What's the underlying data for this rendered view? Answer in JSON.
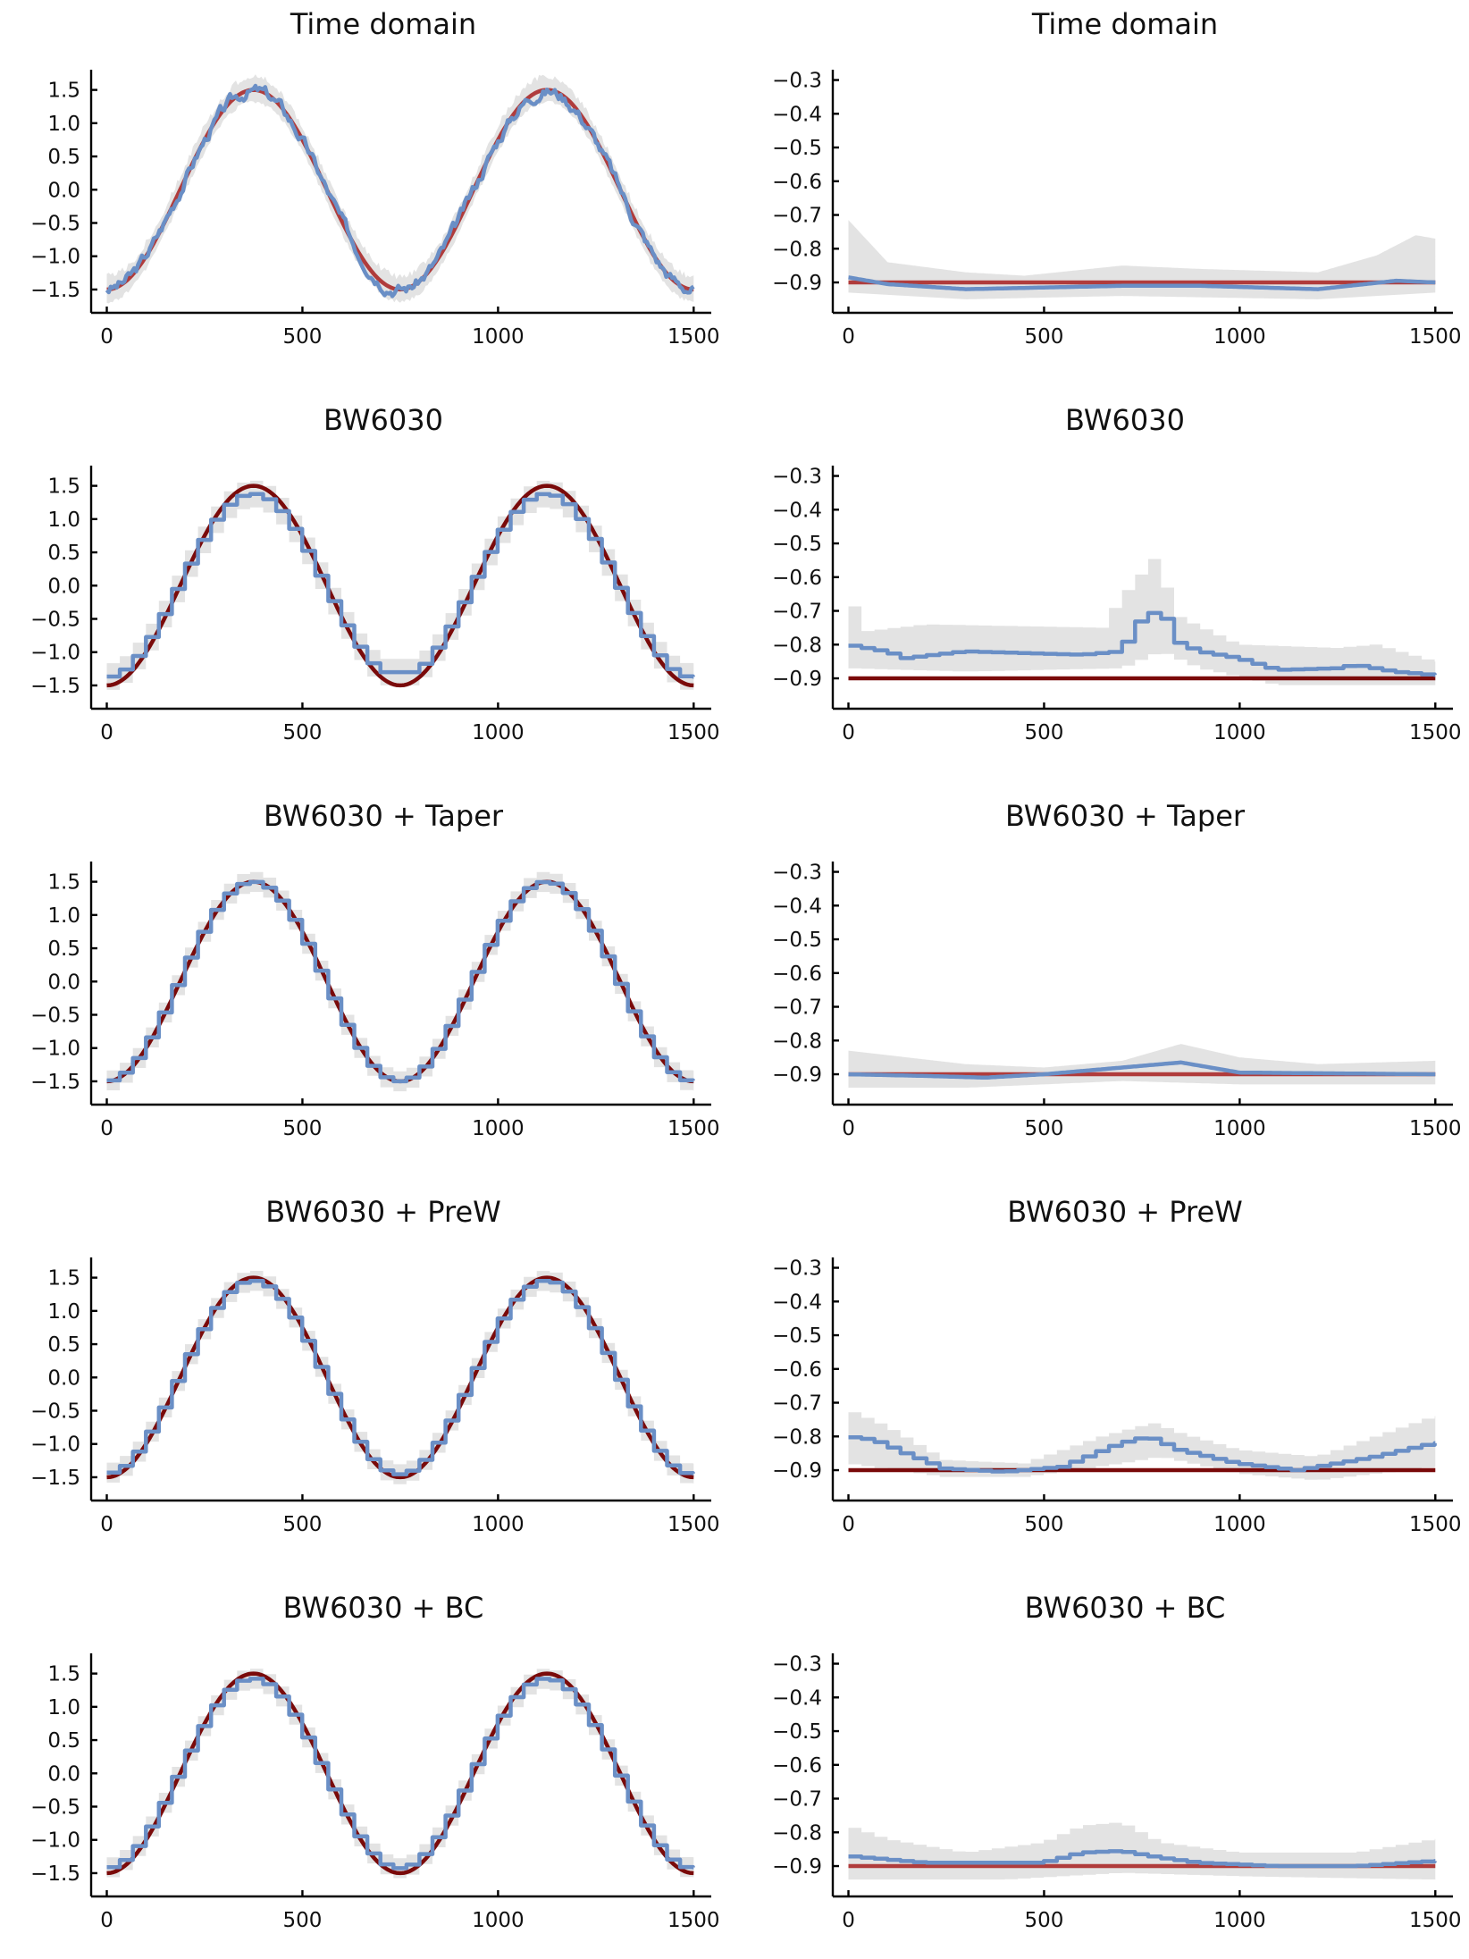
{
  "chart_data": [
    {
      "type": "line",
      "title": "Time domain",
      "x_ticks": [
        0,
        500,
        1000,
        1500
      ],
      "y_ticks": [
        -1.5,
        -1.0,
        -0.5,
        0.0,
        0.5,
        1.0,
        1.5
      ],
      "y_tick_labels": [
        "−1.5",
        "−1.0",
        "−0.5",
        "0.0",
        "0.5",
        "1.0",
        "1.5"
      ],
      "xlim": [
        -40,
        1545
      ],
      "ylim": [
        -1.85,
        1.75
      ],
      "true_curve": "cosine",
      "amplitude": 1.5,
      "period": 750,
      "phase": 375,
      "true_color": "#b03c3c",
      "estimate": {
        "kind": "smooth",
        "step": 0,
        "noise": 0.08,
        "offset": [
          0,
          0
        ]
      },
      "band_width": 0.15,
      "colors": {
        "truth": "#b03c3c",
        "estimate": "#6a8fc6",
        "band": "#d9d9d9"
      }
    },
    {
      "type": "line",
      "title": "Time domain",
      "x_ticks": [
        0,
        500,
        1000,
        1500
      ],
      "y_ticks": [
        -0.9,
        -0.8,
        -0.7,
        -0.6,
        -0.5,
        -0.4,
        -0.3
      ],
      "y_tick_labels": [
        "−0.9",
        "−0.8",
        "−0.7",
        "−0.6",
        "−0.5",
        "−0.4",
        "−0.3"
      ],
      "xlim": [
        -40,
        1545
      ],
      "ylim": [
        -0.99,
        -0.28
      ],
      "true_curve": "constant",
      "constant": -0.9,
      "true_color": "#b03c3c",
      "estimate_points": [
        [
          0,
          -0.885
        ],
        [
          100,
          -0.905
        ],
        [
          300,
          -0.92
        ],
        [
          500,
          -0.915
        ],
        [
          700,
          -0.91
        ],
        [
          900,
          -0.91
        ],
        [
          1200,
          -0.92
        ],
        [
          1400,
          -0.895
        ],
        [
          1500,
          -0.9
        ]
      ],
      "estimate_step": false,
      "band_upper": [
        [
          0,
          -0.715
        ],
        [
          100,
          -0.84
        ],
        [
          300,
          -0.87
        ],
        [
          450,
          -0.88
        ],
        [
          700,
          -0.85
        ],
        [
          900,
          -0.86
        ],
        [
          1200,
          -0.87
        ],
        [
          1350,
          -0.82
        ],
        [
          1450,
          -0.76
        ],
        [
          1500,
          -0.77
        ]
      ],
      "band_lower": [
        [
          0,
          -0.93
        ],
        [
          300,
          -0.95
        ],
        [
          700,
          -0.94
        ],
        [
          1200,
          -0.95
        ],
        [
          1500,
          -0.93
        ]
      ],
      "colors": {
        "truth": "#b03c3c",
        "estimate": "#6a8fc6",
        "band": "#d9d9d9"
      }
    },
    {
      "type": "line",
      "title": "BW6030",
      "x_ticks": [
        0,
        500,
        1000,
        1500
      ],
      "y_ticks": [
        -1.5,
        -1.0,
        -0.5,
        0.0,
        0.5,
        1.0,
        1.5
      ],
      "y_tick_labels": [
        "−1.5",
        "−1.0",
        "−0.5",
        "0.0",
        "0.5",
        "1.0",
        "1.5"
      ],
      "xlim": [
        -40,
        1545
      ],
      "ylim": [
        -1.85,
        1.75
      ],
      "true_curve": "cosine",
      "amplitude": 1.5,
      "period": 750,
      "phase": 375,
      "true_color": "#7a0a0a",
      "estimate": {
        "kind": "step",
        "step": 33.3,
        "noise": 0.0,
        "scale": 0.92,
        "floor": -1.3,
        "floor_range": [
          650,
          900
        ]
      },
      "band_width": 0.2,
      "colors": {
        "truth": "#7a0a0a",
        "estimate": "#6a8fc6",
        "band": "#d9d9d9"
      }
    },
    {
      "type": "line",
      "title": "BW6030",
      "x_ticks": [
        0,
        500,
        1000,
        1500
      ],
      "y_ticks": [
        -0.9,
        -0.8,
        -0.7,
        -0.6,
        -0.5,
        -0.4,
        -0.3
      ],
      "y_tick_labels": [
        "−0.9",
        "−0.8",
        "−0.7",
        "−0.6",
        "−0.5",
        "−0.4",
        "−0.3"
      ],
      "xlim": [
        -40,
        1545
      ],
      "ylim": [
        -0.99,
        -0.28
      ],
      "true_curve": "constant",
      "constant": -0.9,
      "true_color": "#7a0a0a",
      "estimate_points": [
        [
          0,
          -0.8
        ],
        [
          100,
          -0.82
        ],
        [
          150,
          -0.84
        ],
        [
          300,
          -0.82
        ],
        [
          600,
          -0.83
        ],
        [
          700,
          -0.82
        ],
        [
          750,
          -0.73
        ],
        [
          780,
          -0.71
        ],
        [
          800,
          -0.68
        ],
        [
          840,
          -0.79
        ],
        [
          900,
          -0.82
        ],
        [
          1000,
          -0.84
        ],
        [
          1100,
          -0.875
        ],
        [
          1250,
          -0.87
        ],
        [
          1300,
          -0.86
        ],
        [
          1400,
          -0.88
        ],
        [
          1500,
          -0.89
        ]
      ],
      "estimate_step": true,
      "band_upper": [
        [
          0,
          -0.65
        ],
        [
          50,
          -0.76
        ],
        [
          200,
          -0.74
        ],
        [
          650,
          -0.75
        ],
        [
          700,
          -0.66
        ],
        [
          780,
          -0.55
        ],
        [
          800,
          -0.52
        ],
        [
          820,
          -0.66
        ],
        [
          850,
          -0.72
        ],
        [
          1000,
          -0.8
        ],
        [
          1250,
          -0.81
        ],
        [
          1350,
          -0.8
        ],
        [
          1500,
          -0.85
        ]
      ],
      "band_lower": [
        [
          0,
          -0.87
        ],
        [
          300,
          -0.88
        ],
        [
          700,
          -0.87
        ],
        [
          800,
          -0.82
        ],
        [
          900,
          -0.87
        ],
        [
          1100,
          -0.92
        ],
        [
          1500,
          -0.92
        ]
      ],
      "colors": {
        "truth": "#7a0a0a",
        "estimate": "#6a8fc6",
        "band": "#d9d9d9"
      }
    },
    {
      "type": "line",
      "title": "BW6030 + Taper",
      "x_ticks": [
        0,
        500,
        1000,
        1500
      ],
      "y_ticks": [
        -1.5,
        -1.0,
        -0.5,
        0.0,
        0.5,
        1.0,
        1.5
      ],
      "y_tick_labels": [
        "−1.5",
        "−1.0",
        "−0.5",
        "0.0",
        "0.5",
        "1.0",
        "1.5"
      ],
      "xlim": [
        -40,
        1545
      ],
      "ylim": [
        -1.85,
        1.75
      ],
      "true_curve": "cosine",
      "amplitude": 1.5,
      "period": 750,
      "phase": 375,
      "true_color": "#7a0a0a",
      "estimate": {
        "kind": "step",
        "step": 33.3,
        "noise": 0.0,
        "scale": 1.0
      },
      "band_width": 0.15,
      "colors": {
        "truth": "#7a0a0a",
        "estimate": "#6a8fc6",
        "band": "#d9d9d9"
      }
    },
    {
      "type": "line",
      "title": "BW6030 + Taper",
      "x_ticks": [
        0,
        500,
        1000,
        1500
      ],
      "y_ticks": [
        -0.9,
        -0.8,
        -0.7,
        -0.6,
        -0.5,
        -0.4,
        -0.3
      ],
      "y_tick_labels": [
        "−0.9",
        "−0.8",
        "−0.7",
        "−0.6",
        "−0.5",
        "−0.4",
        "−0.3"
      ],
      "xlim": [
        -40,
        1545
      ],
      "ylim": [
        -0.99,
        -0.28
      ],
      "true_curve": "constant",
      "constant": -0.9,
      "true_color": "#b03c3c",
      "estimate_points": [
        [
          0,
          -0.9
        ],
        [
          200,
          -0.905
        ],
        [
          350,
          -0.91
        ],
        [
          500,
          -0.9
        ],
        [
          700,
          -0.88
        ],
        [
          850,
          -0.865
        ],
        [
          1000,
          -0.895
        ],
        [
          1500,
          -0.9
        ]
      ],
      "estimate_step": false,
      "band_upper": [
        [
          0,
          -0.83
        ],
        [
          300,
          -0.87
        ],
        [
          500,
          -0.88
        ],
        [
          700,
          -0.86
        ],
        [
          850,
          -0.81
        ],
        [
          1000,
          -0.85
        ],
        [
          1200,
          -0.87
        ],
        [
          1500,
          -0.86
        ]
      ],
      "band_lower": [
        [
          0,
          -0.94
        ],
        [
          300,
          -0.94
        ],
        [
          700,
          -0.92
        ],
        [
          1000,
          -0.93
        ],
        [
          1500,
          -0.93
        ]
      ],
      "colors": {
        "truth": "#b03c3c",
        "estimate": "#6a8fc6",
        "band": "#d9d9d9"
      }
    },
    {
      "type": "line",
      "title": "BW6030 + PreW",
      "x_ticks": [
        0,
        500,
        1000,
        1500
      ],
      "y_ticks": [
        -1.5,
        -1.0,
        -0.5,
        0.0,
        0.5,
        1.0,
        1.5
      ],
      "y_tick_labels": [
        "−1.5",
        "−1.0",
        "−0.5",
        "0.0",
        "0.5",
        "1.0",
        "1.5"
      ],
      "xlim": [
        -40,
        1545
      ],
      "ylim": [
        -1.85,
        1.75
      ],
      "true_curve": "cosine",
      "amplitude": 1.5,
      "period": 750,
      "phase": 375,
      "true_color": "#7a0a0a",
      "estimate": {
        "kind": "step",
        "step": 33.3,
        "noise": 0.0,
        "scale": 0.97,
        "floor": -1.43,
        "floor_range": [
          0,
          100
        ]
      },
      "band_width": 0.15,
      "colors": {
        "truth": "#7a0a0a",
        "estimate": "#6a8fc6",
        "band": "#d9d9d9"
      }
    },
    {
      "type": "line",
      "title": "BW6030 + PreW",
      "x_ticks": [
        0,
        500,
        1000,
        1500
      ],
      "y_ticks": [
        -0.9,
        -0.8,
        -0.7,
        -0.6,
        -0.5,
        -0.4,
        -0.3
      ],
      "y_tick_labels": [
        "−0.9",
        "−0.8",
        "−0.7",
        "−0.6",
        "−0.5",
        "−0.4",
        "−0.3"
      ],
      "xlim": [
        -40,
        1545
      ],
      "ylim": [
        -0.99,
        -0.28
      ],
      "true_curve": "constant",
      "constant": -0.9,
      "true_color": "#7a0a0a",
      "estimate_points": [
        [
          0,
          -0.8
        ],
        [
          70,
          -0.81
        ],
        [
          150,
          -0.85
        ],
        [
          250,
          -0.895
        ],
        [
          400,
          -0.905
        ],
        [
          550,
          -0.89
        ],
        [
          700,
          -0.82
        ],
        [
          770,
          -0.8
        ],
        [
          850,
          -0.84
        ],
        [
          1000,
          -0.88
        ],
        [
          1150,
          -0.9
        ],
        [
          1250,
          -0.88
        ],
        [
          1350,
          -0.86
        ],
        [
          1500,
          -0.82
        ]
      ],
      "estimate_step": true,
      "band_upper": [
        [
          0,
          -0.72
        ],
        [
          100,
          -0.77
        ],
        [
          250,
          -0.87
        ],
        [
          450,
          -0.88
        ],
        [
          650,
          -0.8
        ],
        [
          780,
          -0.76
        ],
        [
          850,
          -0.79
        ],
        [
          1000,
          -0.84
        ],
        [
          1200,
          -0.86
        ],
        [
          1400,
          -0.78
        ],
        [
          1500,
          -0.74
        ]
      ],
      "band_lower": [
        [
          0,
          -0.88
        ],
        [
          250,
          -0.92
        ],
        [
          450,
          -0.92
        ],
        [
          700,
          -0.88
        ],
        [
          800,
          -0.86
        ],
        [
          1000,
          -0.91
        ],
        [
          1200,
          -0.93
        ],
        [
          1500,
          -0.89
        ]
      ],
      "colors": {
        "truth": "#7a0a0a",
        "estimate": "#6a8fc6",
        "band": "#d9d9d9"
      }
    },
    {
      "type": "line",
      "title": "BW6030 + BC",
      "x_ticks": [
        0,
        500,
        1000,
        1500
      ],
      "y_ticks": [
        -1.5,
        -1.0,
        -0.5,
        0.0,
        0.5,
        1.0,
        1.5
      ],
      "y_tick_labels": [
        "−1.5",
        "−1.0",
        "−0.5",
        "0.0",
        "0.5",
        "1.0",
        "1.5"
      ],
      "xlim": [
        -40,
        1545
      ],
      "ylim": [
        -1.85,
        1.75
      ],
      "true_curve": "cosine",
      "amplitude": 1.5,
      "period": 750,
      "phase": 375,
      "true_color": "#7a0a0a",
      "estimate": {
        "kind": "step",
        "step": 33.3,
        "noise": 0.0,
        "scale": 0.95
      },
      "band_width": 0.15,
      "colors": {
        "truth": "#7a0a0a",
        "estimate": "#6a8fc6",
        "band": "#d9d9d9"
      }
    },
    {
      "type": "line",
      "title": "BW6030 + BC",
      "x_ticks": [
        0,
        500,
        1000,
        1500
      ],
      "y_ticks": [
        -0.9,
        -0.8,
        -0.7,
        -0.6,
        -0.5,
        -0.4,
        -0.3
      ],
      "y_tick_labels": [
        "−0.9",
        "−0.8",
        "−0.7",
        "−0.6",
        "−0.5",
        "−0.4",
        "−0.3"
      ],
      "xlim": [
        -40,
        1545
      ],
      "ylim": [
        -0.99,
        -0.28
      ],
      "true_curve": "constant",
      "constant": -0.9,
      "true_color": "#b03c3c",
      "estimate_points": [
        [
          0,
          -0.87
        ],
        [
          100,
          -0.88
        ],
        [
          200,
          -0.89
        ],
        [
          500,
          -0.89
        ],
        [
          600,
          -0.86
        ],
        [
          700,
          -0.855
        ],
        [
          800,
          -0.875
        ],
        [
          900,
          -0.89
        ],
        [
          1100,
          -0.9
        ],
        [
          1300,
          -0.9
        ],
        [
          1500,
          -0.885
        ]
      ],
      "estimate_step": true,
      "band_upper": [
        [
          0,
          -0.78
        ],
        [
          100,
          -0.82
        ],
        [
          300,
          -0.86
        ],
        [
          500,
          -0.83
        ],
        [
          600,
          -0.78
        ],
        [
          700,
          -0.77
        ],
        [
          800,
          -0.83
        ],
        [
          1000,
          -0.86
        ],
        [
          1300,
          -0.86
        ],
        [
          1500,
          -0.82
        ]
      ],
      "band_lower": [
        [
          0,
          -0.94
        ],
        [
          400,
          -0.94
        ],
        [
          700,
          -0.92
        ],
        [
          1000,
          -0.93
        ],
        [
          1500,
          -0.94
        ]
      ],
      "colors": {
        "truth": "#b03c3c",
        "estimate": "#6a8fc6",
        "band": "#d9d9d9"
      }
    }
  ]
}
